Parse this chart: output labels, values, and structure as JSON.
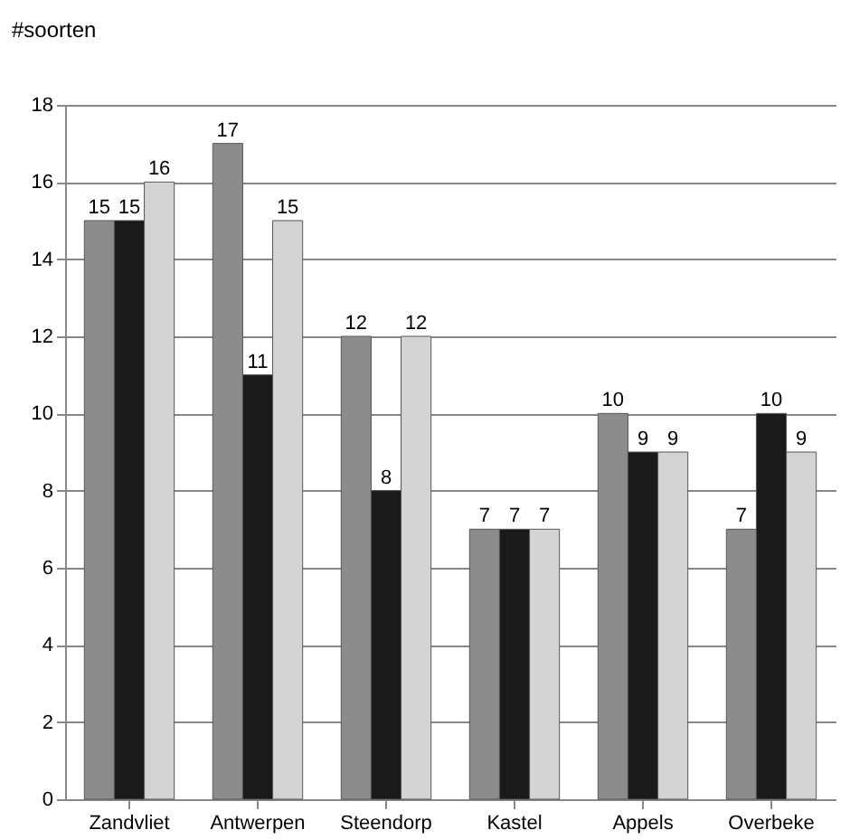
{
  "chart_data": {
    "type": "bar",
    "ylabel": "#soorten",
    "categories": [
      "Zandvliet",
      "Antwerpen",
      "Steendorp",
      "Kastel",
      "Appels",
      "Overbeke"
    ],
    "series": [
      {
        "color": "#8c8c8c",
        "values": [
          15,
          17,
          12,
          7,
          10,
          7
        ]
      },
      {
        "color": "#1a1a1a",
        "values": [
          15,
          11,
          8,
          7,
          9,
          10
        ]
      },
      {
        "color": "#d4d4d4",
        "values": [
          16,
          15,
          12,
          7,
          9,
          9
        ]
      }
    ],
    "ylim": [
      0,
      18
    ],
    "yticks": [
      0,
      2,
      4,
      6,
      8,
      10,
      12,
      14,
      16,
      18
    ],
    "grid": "y",
    "data_labels": true
  }
}
